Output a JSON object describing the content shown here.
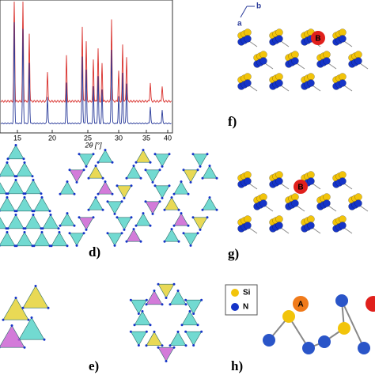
{
  "xrd": {
    "ticks": [
      "15",
      "20",
      "25",
      "30",
      "35",
      "40"
    ],
    "axis_label": "2θ [°]"
  },
  "panels": {
    "d": "d)",
    "e": "e)",
    "f": "f)",
    "g": "g)",
    "h": "h)"
  },
  "axes_labels": {
    "a": "a",
    "b": "b"
  },
  "sites": {
    "f_B": "B",
    "g_B": "B",
    "h_A": "A"
  },
  "legend": {
    "si": "Si",
    "n": "N"
  }
}
